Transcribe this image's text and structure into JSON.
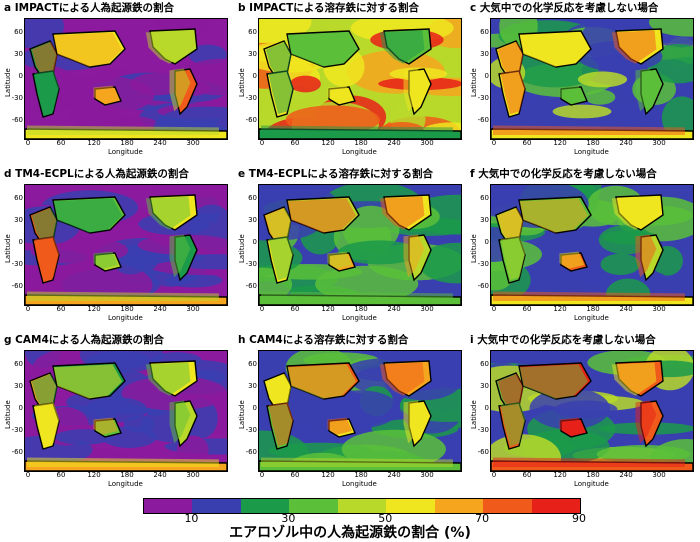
{
  "panels": [
    {
      "title": "a IMPACTによる人為起源鉄の割合",
      "scheme": "low"
    },
    {
      "title": "b IMPACTによる溶存鉄に対する割合",
      "scheme": "high"
    },
    {
      "title": "c 大気中での化学反応を考慮しない場合",
      "scheme": "mid"
    },
    {
      "title": "d TM4-ECPLによる人為起源鉄の割合",
      "scheme": "low"
    },
    {
      "title": "e TM4-ECPLによる溶存鉄に対する割合",
      "scheme": "green"
    },
    {
      "title": "f 大気中での化学反応を考慮しない場合",
      "scheme": "green"
    },
    {
      "title": "g CAM4による人為起源鉄の割合",
      "scheme": "low"
    },
    {
      "title": "h CAM4による溶存鉄に対する割合",
      "scheme": "green"
    },
    {
      "title": "i 大気中での化学反応を考慮しない場合",
      "scheme": "mid"
    }
  ],
  "axes": {
    "ylabel": "Latitude",
    "xlabel": "Longitude",
    "yticks": [
      "60",
      "30",
      "0",
      "-30",
      "-60"
    ],
    "xticks": [
      "0",
      "60",
      "120",
      "180",
      "240",
      "300"
    ]
  },
  "colorbar": {
    "colors": [
      "#8b1a9e",
      "#3a3fb0",
      "#1b9a4a",
      "#5bbf3a",
      "#b8d92a",
      "#f0e620",
      "#f5a51e",
      "#f05a1a",
      "#e8201a"
    ],
    "ticks": [
      "10",
      "30",
      "50",
      "70",
      "90"
    ],
    "label": "エアロゾル中の人為起源鉄の割合 (%)"
  }
}
